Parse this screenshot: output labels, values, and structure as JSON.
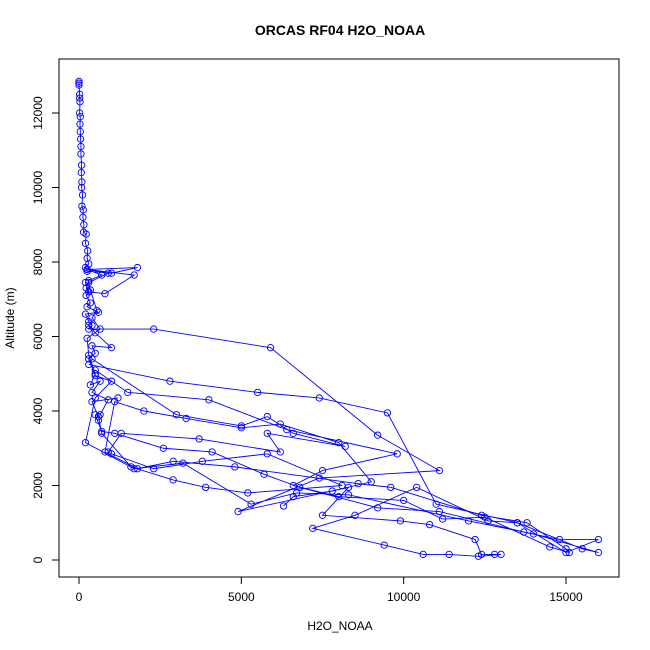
{
  "colors": {
    "series": "#0000ff",
    "axis": "#000000",
    "background": "#ffffff"
  },
  "chart_data": {
    "type": "line",
    "markers": "open-circle",
    "title": "ORCAS RF04 H2O_NOAA",
    "xlabel": "H2O_NOAA",
    "ylabel": "Altitude (m)",
    "xlim": [
      0,
      16000
    ],
    "ylim": [
      0,
      12800
    ],
    "xticks": [
      0,
      5000,
      10000,
      15000
    ],
    "yticks": [
      0,
      2000,
      4000,
      6000,
      8000,
      10000,
      12000
    ],
    "grid": false,
    "series": [
      {
        "points": [
          [
            0,
            12850
          ],
          [
            0,
            12800
          ],
          [
            0,
            12750
          ],
          [
            20,
            12500
          ],
          [
            20,
            12400
          ],
          [
            30,
            12300
          ],
          [
            20,
            12000
          ],
          [
            40,
            11900
          ],
          [
            30,
            11700
          ],
          [
            40,
            11500
          ],
          [
            50,
            11300
          ],
          [
            60,
            11100
          ],
          [
            60,
            10900
          ],
          [
            80,
            10600
          ],
          [
            70,
            10400
          ],
          [
            90,
            10150
          ],
          [
            80,
            10000
          ],
          [
            110,
            9800
          ],
          [
            90,
            9500
          ],
          [
            130,
            9400
          ],
          [
            120,
            9200
          ],
          [
            150,
            9000
          ],
          [
            140,
            8800
          ],
          [
            220,
            8750
          ],
          [
            200,
            8500
          ],
          [
            270,
            8300
          ],
          [
            250,
            8100
          ],
          [
            300,
            7950
          ],
          [
            200,
            7850
          ],
          [
            250,
            7750
          ],
          [
            1000,
            7700
          ],
          [
            1800,
            7850
          ],
          [
            250,
            7800
          ],
          [
            700,
            7650
          ],
          [
            300,
            7500
          ],
          [
            220,
            7300
          ],
          [
            300,
            7200
          ],
          [
            220,
            7100
          ],
          [
            350,
            6900
          ],
          [
            250,
            6800
          ],
          [
            600,
            6650
          ],
          [
            200,
            6600
          ],
          [
            300,
            6400
          ],
          [
            400,
            6300
          ],
          [
            300,
            6200
          ],
          [
            2300,
            6200
          ],
          [
            5900,
            5700
          ],
          [
            9200,
            3350
          ],
          [
            11100,
            2400
          ],
          [
            7400,
            2200
          ],
          [
            4900,
            1300
          ],
          [
            8300,
            1950
          ],
          [
            7500,
            1200
          ],
          [
            9900,
            1050
          ],
          [
            10800,
            950
          ],
          [
            12200,
            550
          ],
          [
            12400,
            150
          ],
          [
            12800,
            150
          ],
          [
            13000,
            150
          ],
          [
            12300,
            100
          ],
          [
            11400,
            150
          ],
          [
            10600,
            150
          ],
          [
            9400,
            400
          ],
          [
            7200,
            850
          ],
          [
            8500,
            1200
          ],
          [
            10400,
            1950
          ],
          [
            12600,
            1050
          ],
          [
            13500,
            1000
          ],
          [
            15500,
            300
          ],
          [
            16000,
            200
          ],
          [
            14000,
            700
          ],
          [
            12000,
            1050
          ],
          [
            8300,
            1750
          ],
          [
            6700,
            1800
          ],
          [
            5300,
            1500
          ],
          [
            3200,
            2600
          ],
          [
            1700,
            2450
          ],
          [
            200,
            3150
          ],
          [
            500,
            4350
          ],
          [
            1000,
            4800
          ],
          [
            500,
            4950
          ],
          [
            300,
            5400
          ],
          [
            500,
            5550
          ],
          [
            400,
            5750
          ],
          [
            1000,
            5700
          ],
          [
            500,
            6100
          ],
          [
            300,
            6300
          ]
        ]
      },
      {
        "points": [
          [
            300,
            5250
          ],
          [
            2800,
            4800
          ],
          [
            5500,
            4500
          ],
          [
            7400,
            4350
          ],
          [
            9500,
            3950
          ],
          [
            11000,
            1500
          ],
          [
            13500,
            1000
          ],
          [
            15000,
            200
          ],
          [
            16000,
            550
          ],
          [
            14800,
            550
          ],
          [
            13700,
            750
          ],
          [
            11100,
            1300
          ],
          [
            9200,
            1400
          ],
          [
            6800,
            1950
          ],
          [
            5700,
            2300
          ],
          [
            4100,
            2900
          ],
          [
            2600,
            3000
          ],
          [
            1100,
            3400
          ],
          [
            700,
            3450
          ],
          [
            500,
            3900
          ]
        ]
      },
      {
        "points": [
          [
            400,
            5400
          ],
          [
            3000,
            3900
          ],
          [
            5000,
            3600
          ],
          [
            5800,
            3850
          ],
          [
            6600,
            3400
          ],
          [
            8200,
            3050
          ],
          [
            5800,
            3400
          ],
          [
            6200,
            2900
          ],
          [
            3700,
            3250
          ],
          [
            1300,
            3400
          ],
          [
            900,
            2900
          ],
          [
            1000,
            2850
          ],
          [
            2300,
            2450
          ],
          [
            3800,
            2650
          ],
          [
            5800,
            2850
          ],
          [
            8100,
            2000
          ],
          [
            5200,
            1800
          ],
          [
            3900,
            1950
          ],
          [
            2900,
            2150
          ],
          [
            1600,
            2500
          ],
          [
            700,
            3400
          ],
          [
            600,
            3850
          ],
          [
            400,
            4250
          ],
          [
            1200,
            4350
          ]
        ]
      },
      {
        "points": [
          [
            500,
            5100
          ],
          [
            1500,
            4500
          ],
          [
            4000,
            4300
          ],
          [
            6400,
            3500
          ],
          [
            9800,
            2850
          ],
          [
            7500,
            2400
          ],
          [
            6600,
            2000
          ],
          [
            8000,
            1700
          ],
          [
            10000,
            1600
          ],
          [
            11200,
            1100
          ],
          [
            12500,
            1150
          ],
          [
            14500,
            350
          ],
          [
            15100,
            200
          ],
          [
            15000,
            300
          ],
          [
            13800,
            1000
          ],
          [
            12400,
            1200
          ],
          [
            9600,
            1950
          ],
          [
            8600,
            2050
          ],
          [
            4800,
            2500
          ],
          [
            2900,
            2650
          ],
          [
            1800,
            2450
          ],
          [
            800,
            2900
          ],
          [
            1100,
            4250
          ],
          [
            2000,
            4000
          ],
          [
            3300,
            3800
          ],
          [
            5000,
            3550
          ],
          [
            6200,
            3650
          ],
          [
            8000,
            3150
          ],
          [
            9000,
            2100
          ],
          [
            7800,
            1850
          ],
          [
            6600,
            1700
          ],
          [
            6300,
            1450
          ]
        ]
      },
      {
        "points": [
          [
            200,
            7450
          ],
          [
            300,
            7200
          ],
          [
            800,
            7150
          ],
          [
            1700,
            7650
          ],
          [
            250,
            7800
          ],
          [
            900,
            7700
          ],
          [
            300,
            7450
          ],
          [
            350,
            7250
          ],
          [
            550,
            6700
          ],
          [
            400,
            6500
          ],
          [
            650,
            6200
          ],
          [
            250,
            5950
          ],
          [
            300,
            5500
          ],
          [
            500,
            5000
          ],
          [
            350,
            4700
          ],
          [
            650,
            4800
          ],
          [
            400,
            4500
          ],
          [
            900,
            4300
          ],
          [
            650,
            3900
          ],
          [
            600,
            3750
          ]
        ]
      }
    ]
  }
}
